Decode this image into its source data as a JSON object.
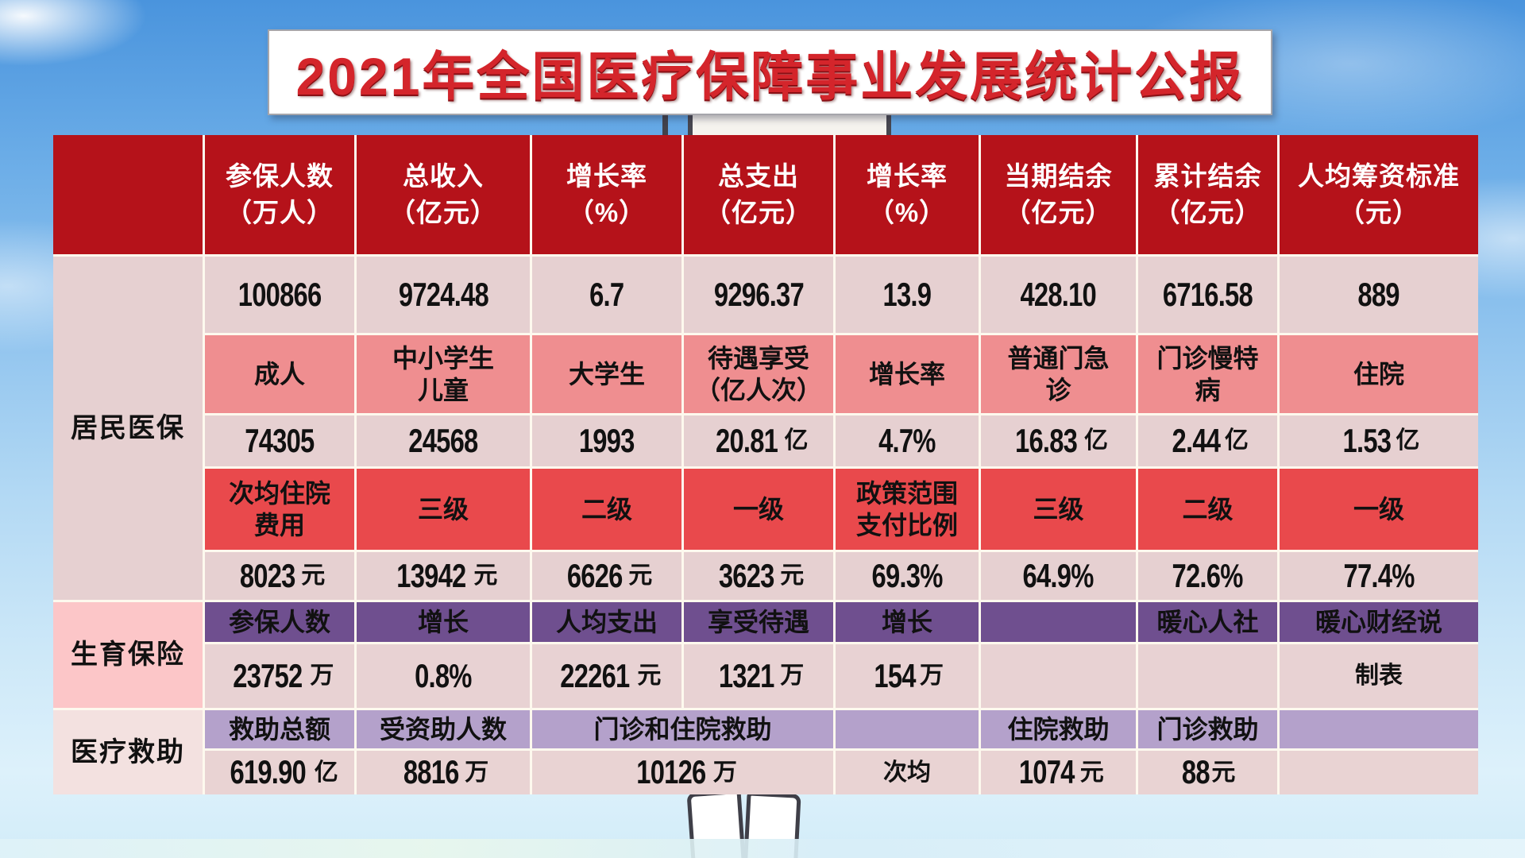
{
  "title_banner": "2021年全国医疗保障事业发展统计公报",
  "chart_data": {
    "type": "table",
    "title": "2021年全国医疗保障事业发展统计公报",
    "header": [
      "",
      "参保人数\n（万人）",
      "总收入\n（亿元）",
      "增长率\n（%）",
      "总支出\n（亿元）",
      "增长率\n（%）",
      "当期结余\n（亿元）",
      "累计结余\n（亿元）",
      "人均筹资标准\n（元）"
    ],
    "sections": [
      {
        "label": "居民医保",
        "label_bg": "#e6d0d1",
        "rows": [
          {
            "style": "num",
            "bg": "#e6d0d1",
            "cells": [
              {
                "t": "100866"
              },
              {
                "t": "9724.48"
              },
              {
                "t": "6.7"
              },
              {
                "t": "9296.37"
              },
              {
                "t": "13.9"
              },
              {
                "t": "428.10"
              },
              {
                "t": "6716.58"
              },
              {
                "t": "889"
              }
            ]
          },
          {
            "style": "cjk",
            "bg": "#ef8e90",
            "cells": [
              {
                "t": "成人"
              },
              {
                "t": "中小学生\n儿童"
              },
              {
                "t": "大学生"
              },
              {
                "t": "待遇享受\n（亿人次）"
              },
              {
                "t": "增长率"
              },
              {
                "t": "普通门急\n诊"
              },
              {
                "t": "门诊慢特\n病"
              },
              {
                "t": "住院"
              }
            ]
          },
          {
            "style": "num",
            "bg": "#e6d0d1",
            "cells": [
              {
                "t": "74305"
              },
              {
                "t": "24568"
              },
              {
                "t": "1993"
              },
              {
                "t": "20.81亿"
              },
              {
                "t": "4.7%"
              },
              {
                "t": "16.83亿"
              },
              {
                "t": "2.44亿"
              },
              {
                "t": "1.53亿"
              }
            ]
          },
          {
            "style": "cjk",
            "bg": "#e9494c",
            "cells": [
              {
                "t": "次均住院\n费用"
              },
              {
                "t": "三级"
              },
              {
                "t": "二级"
              },
              {
                "t": "一级"
              },
              {
                "t": "政策范围\n支付比例"
              },
              {
                "t": "三级"
              },
              {
                "t": "二级"
              },
              {
                "t": "一级"
              }
            ]
          },
          {
            "style": "num",
            "bg": "#e6d0d1",
            "cells": [
              {
                "t": "8023元"
              },
              {
                "t": "13942元"
              },
              {
                "t": "6626元"
              },
              {
                "t": "3623元"
              },
              {
                "t": "69.3%"
              },
              {
                "t": "64.9%"
              },
              {
                "t": "72.6%"
              },
              {
                "t": "77.4%"
              }
            ]
          }
        ]
      },
      {
        "label": "生育保险",
        "label_bg": "#fcc6c8",
        "rows": [
          {
            "style": "cjk",
            "bg": "#6f4f8f",
            "cells": [
              {
                "t": "参保人数"
              },
              {
                "t": "增长"
              },
              {
                "t": "人均支出"
              },
              {
                "t": "享受待遇"
              },
              {
                "t": "增长"
              },
              {
                "t": ""
              },
              {
                "t": "暖心人社"
              },
              {
                "t": "暖心财经说"
              }
            ]
          },
          {
            "style": "num",
            "bg": "#e8d2d3",
            "cells": [
              {
                "t": "23752万"
              },
              {
                "t": "0.8%"
              },
              {
                "t": "22261元"
              },
              {
                "t": "1321万"
              },
              {
                "t": "154万"
              },
              {
                "t": ""
              },
              {
                "t": ""
              },
              {
                "t": "制表"
              }
            ]
          }
        ]
      },
      {
        "label": "医疗救助",
        "label_bg": "#f3e1e0",
        "rows": [
          {
            "style": "cjk",
            "bg": "#b4a1cb",
            "cells": [
              {
                "t": "救助总额"
              },
              {
                "t": "受资助人数"
              },
              {
                "t": "门诊和住院救助",
                "span": 2
              },
              {
                "t": ""
              },
              {
                "t": "住院救助"
              },
              {
                "t": "门诊救助"
              },
              {
                "t": ""
              }
            ]
          },
          {
            "style": "num",
            "bg": "#e9d3d3",
            "cells": [
              {
                "t": "619.90亿"
              },
              {
                "t": "8816万"
              },
              {
                "t": "10126万",
                "span": 2
              },
              {
                "t": "次均"
              },
              {
                "t": "1074元"
              },
              {
                "t": "88元"
              },
              {
                "t": ""
              }
            ]
          }
        ]
      }
    ],
    "layout_hints": {
      "header_bg": "#b5121a",
      "header_text_color": "#ffffff",
      "grid_gap_color": "#fdf9ee",
      "title_color": "#d4252b",
      "first_column_is_section_label": true,
      "merged_cells": [
        "医疗救助 row1 col3-4: 门诊和住院救助",
        "医疗救助 row2 col3-4: 10126万"
      ]
    }
  }
}
